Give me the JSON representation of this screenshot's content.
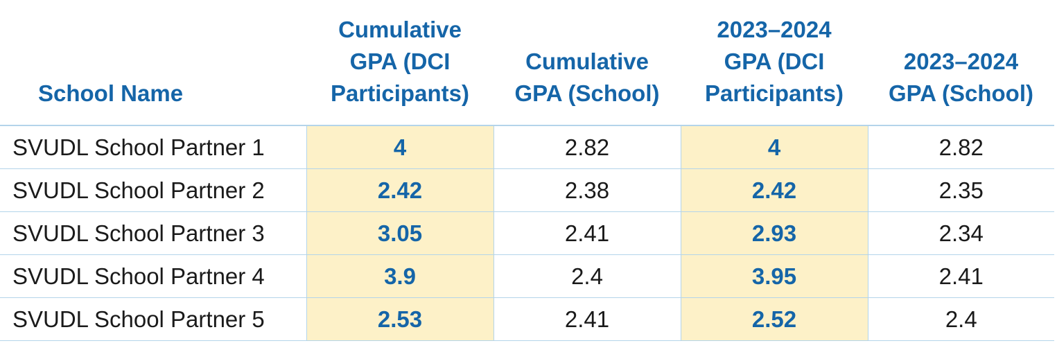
{
  "chart_data": {
    "type": "table",
    "columns": [
      "School Name",
      "Cumulative GPA (DCI Participants)",
      "Cumulative GPA (School)",
      "2023–2024 GPA (DCI Participants)",
      "2023–2024 GPA (School)"
    ],
    "header_lines": [
      [
        "School Name"
      ],
      [
        "Cumulative",
        "GPA (DCI",
        "Participants)"
      ],
      [
        "Cumulative",
        "GPA (School)"
      ],
      [
        "2023–2024",
        "GPA (DCI",
        "Participants)"
      ],
      [
        "2023–2024",
        "GPA (School)"
      ]
    ],
    "rows": [
      [
        "SVUDL School Partner 1",
        "4",
        "2.82",
        "4",
        "2.82"
      ],
      [
        "SVUDL School Partner 2",
        "2.42",
        "2.38",
        "2.42",
        "2.35"
      ],
      [
        "SVUDL School Partner 3",
        "3.05",
        "2.41",
        "2.93",
        "2.34"
      ],
      [
        "SVUDL School Partner 4",
        "3.9",
        "2.4",
        "3.95",
        "2.41"
      ],
      [
        "SVUDL School Partner 5",
        "2.53",
        "2.41",
        "2.52",
        "2.4"
      ]
    ],
    "highlighted_columns": [
      1,
      3
    ]
  },
  "colors": {
    "header_text": "#1565a8",
    "highlight_fill": "#fdf1c8",
    "highlight_text": "#1565a8",
    "body_text": "#1a1a1a",
    "rule": "#b3d4ea"
  }
}
